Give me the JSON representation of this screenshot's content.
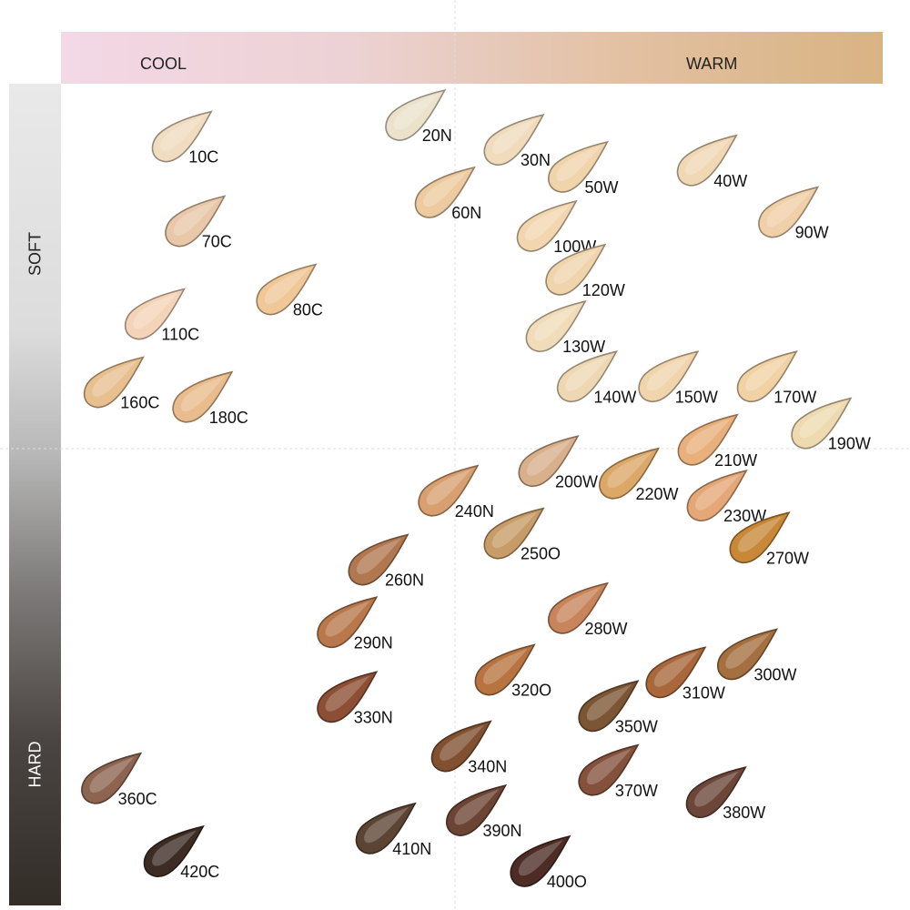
{
  "chart_data": {
    "type": "scatter",
    "title": "",
    "xlabel_left": "COOL",
    "xlabel_right": "WARM",
    "ylabel_top": "SOFT",
    "ylabel_bottom": "HARD",
    "xlim": [
      0,
      100
    ],
    "ylim": [
      0,
      100
    ],
    "grid": "dashed center lines",
    "points": [
      {
        "label": "10C",
        "x": 14.2,
        "y": 6.6,
        "color": "#f0dcc0"
      },
      {
        "label": "20N",
        "x": 42.6,
        "y": 4.0,
        "color": "#ece2cc"
      },
      {
        "label": "30N",
        "x": 54.6,
        "y": 7.0,
        "color": "#f0dcbc"
      },
      {
        "label": "50W",
        "x": 62.4,
        "y": 10.3,
        "color": "#f0d4ac"
      },
      {
        "label": "40W",
        "x": 78.1,
        "y": 9.5,
        "color": "#f0d8b4"
      },
      {
        "label": "60N",
        "x": 46.2,
        "y": 13.4,
        "color": "#eecaa0"
      },
      {
        "label": "70C",
        "x": 15.8,
        "y": 16.9,
        "color": "#e8c8a8"
      },
      {
        "label": "100W",
        "x": 58.6,
        "y": 17.5,
        "color": "#f2d6b0"
      },
      {
        "label": "90W",
        "x": 88.0,
        "y": 15.8,
        "color": "#f0d0a8"
      },
      {
        "label": "120W",
        "x": 62.1,
        "y": 22.8,
        "color": "#f0d4ac"
      },
      {
        "label": "80C",
        "x": 26.9,
        "y": 25.2,
        "color": "#f0c898"
      },
      {
        "label": "110C",
        "x": 10.9,
        "y": 28.2,
        "color": "#f4d4b8"
      },
      {
        "label": "130W",
        "x": 59.7,
        "y": 29.7,
        "color": "#f0dcb8"
      },
      {
        "label": "140W",
        "x": 63.5,
        "y": 35.8,
        "color": "#eed8b4"
      },
      {
        "label": "150W",
        "x": 73.4,
        "y": 35.8,
        "color": "#f0d4ac"
      },
      {
        "label": "170W",
        "x": 85.4,
        "y": 35.8,
        "color": "#f0d2a4"
      },
      {
        "label": "160C",
        "x": 5.9,
        "y": 36.5,
        "color": "#e8c090"
      },
      {
        "label": "180C",
        "x": 16.7,
        "y": 38.3,
        "color": "#e8bc8c"
      },
      {
        "label": "190W",
        "x": 92.0,
        "y": 41.5,
        "color": "#eedab0"
      },
      {
        "label": "210W",
        "x": 78.2,
        "y": 43.5,
        "color": "#e8b07c"
      },
      {
        "label": "200W",
        "x": 58.8,
        "y": 46.1,
        "color": "#d8b08c"
      },
      {
        "label": "220W",
        "x": 68.6,
        "y": 47.6,
        "color": "#dca868"
      },
      {
        "label": "230W",
        "x": 79.3,
        "y": 50.3,
        "color": "#e4a878"
      },
      {
        "label": "240N",
        "x": 46.6,
        "y": 49.7,
        "color": "#d8a070"
      },
      {
        "label": "250O",
        "x": 54.6,
        "y": 54.9,
        "color": "#c89c68"
      },
      {
        "label": "270W",
        "x": 84.5,
        "y": 55.4,
        "color": "#c88838"
      },
      {
        "label": "260N",
        "x": 38.1,
        "y": 58.1,
        "color": "#b07850"
      },
      {
        "label": "290N",
        "x": 34.3,
        "y": 65.7,
        "color": "#b8784c"
      },
      {
        "label": "280W",
        "x": 62.4,
        "y": 64.0,
        "color": "#c8845a"
      },
      {
        "label": "320O",
        "x": 53.5,
        "y": 71.5,
        "color": "#b87440"
      },
      {
        "label": "310W",
        "x": 74.3,
        "y": 71.8,
        "color": "#a8683c"
      },
      {
        "label": "300W",
        "x": 83.0,
        "y": 69.6,
        "color": "#a47040"
      },
      {
        "label": "330N",
        "x": 34.3,
        "y": 74.8,
        "color": "#8c4e34"
      },
      {
        "label": "350W",
        "x": 66.1,
        "y": 75.9,
        "color": "#7c5634"
      },
      {
        "label": "340N",
        "x": 48.2,
        "y": 80.8,
        "color": "#805030"
      },
      {
        "label": "360C",
        "x": 5.6,
        "y": 84.7,
        "color": "#8c6450"
      },
      {
        "label": "370W",
        "x": 66.1,
        "y": 83.7,
        "color": "#84523c"
      },
      {
        "label": "380W",
        "x": 79.2,
        "y": 86.4,
        "color": "#6c4638"
      },
      {
        "label": "390N",
        "x": 50.0,
        "y": 88.6,
        "color": "#6c4434"
      },
      {
        "label": "410N",
        "x": 39.0,
        "y": 90.8,
        "color": "#5c4434"
      },
      {
        "label": "420C",
        "x": 13.2,
        "y": 93.6,
        "color": "#3c2c24"
      },
      {
        "label": "400O",
        "x": 57.8,
        "y": 94.8,
        "color": "#4c2c24"
      }
    ]
  }
}
